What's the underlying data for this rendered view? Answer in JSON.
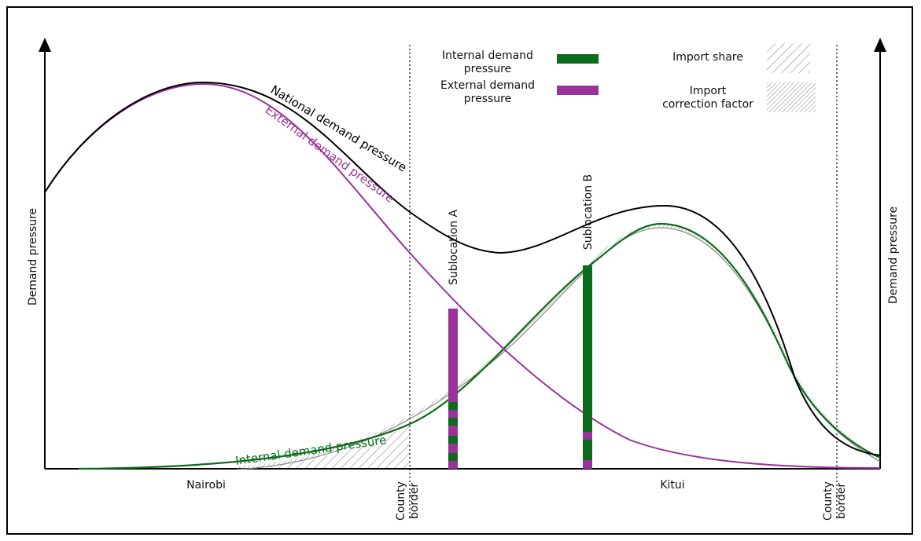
{
  "axes": {
    "y_left_label": "Demand pressure",
    "y_right_label": "Demand pressure"
  },
  "locations": {
    "nairobi": "Nairobi",
    "kitui": "Kitui",
    "county_border_left_1": "County",
    "county_border_left_2": "border",
    "county_border_right_1": "County",
    "county_border_right_2": "border"
  },
  "curves": {
    "national": "National demand pressure",
    "external": "External demand pressure",
    "internal": "Internal demand pressure"
  },
  "sublocations": {
    "a": "Sublocation A",
    "b": "Sublocation B"
  },
  "legend": {
    "internal_1": "Internal demand",
    "internal_2": "pressure",
    "external_1": "External demand",
    "external_2": "pressure",
    "import_share": "Import share",
    "import_correction_1": "Import",
    "import_correction_2": "correction factor"
  },
  "colors": {
    "national": "#000000",
    "external": "#993399",
    "internal": "#0b6b1a"
  }
}
